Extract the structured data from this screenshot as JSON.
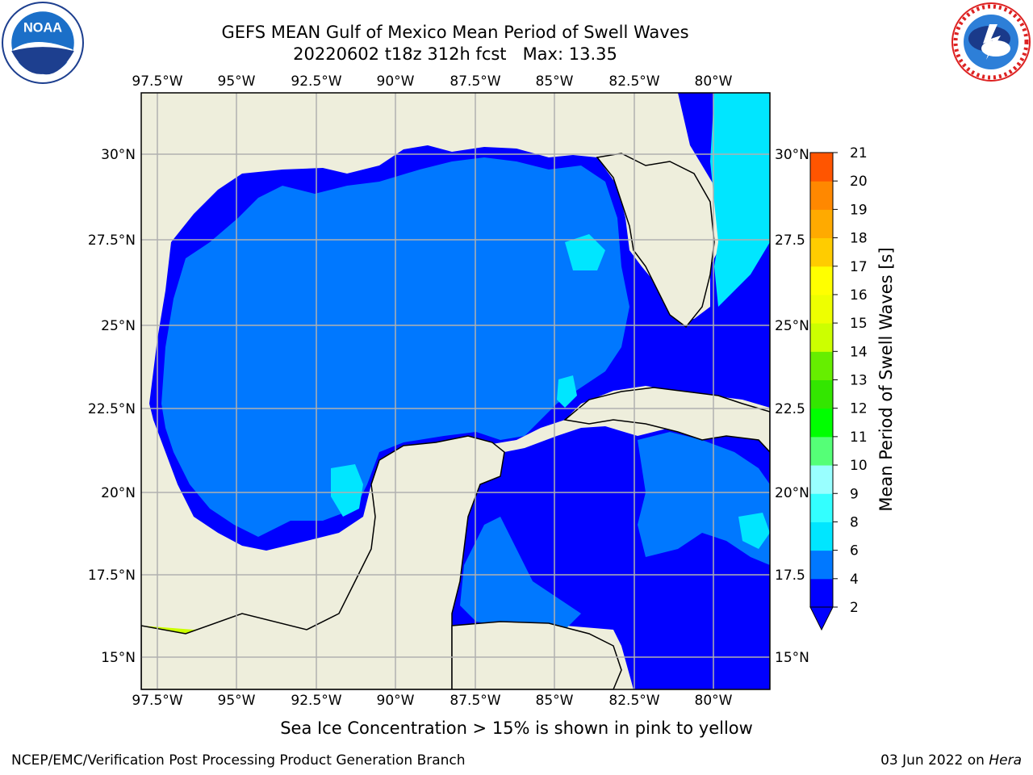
{
  "title": {
    "line1": "GEFS MEAN Gulf of Mexico Mean Period of Swell Waves",
    "line2": "20220602 t18z 312h fcst   Max: 13.35"
  },
  "map": {
    "lon_ticks": [
      "97.5°W",
      "95°W",
      "92.5°W",
      "90°W",
      "87.5°W",
      "85°W",
      "82.5°W",
      "80°W"
    ],
    "lat_ticks_left": [
      "30°N",
      "27.5°N",
      "25°N",
      "22.5°N",
      "20°N",
      "17.5°N",
      "15°N"
    ],
    "lat_ticks_right": [
      "30°N",
      "27.5",
      "25°N",
      "22.5",
      "20°N",
      "17.5",
      "15°N"
    ],
    "colors": {
      "land": "#eeeedc",
      "ocean_dark": "#0000ff",
      "ocean_mid": "#0078ff",
      "ocean_light": "#00e6ff",
      "grid": "#b0b0b0"
    }
  },
  "colorbar": {
    "label": "Mean Period of Swell Waves [s]",
    "ticks": [
      "2",
      "4",
      "6",
      "8",
      "9",
      "10",
      "11",
      "12",
      "13",
      "14",
      "15",
      "16",
      "17",
      "18",
      "19",
      "20",
      "21"
    ],
    "bands": [
      "#0000ff",
      "#0078ff",
      "#00e6ff",
      "#33ffff",
      "#99ffff",
      "#55ff77",
      "#00ff00",
      "#33e600",
      "#66ee00",
      "#ccff00",
      "#eeff00",
      "#ffff00",
      "#ffcc00",
      "#ffaa00",
      "#ff8800",
      "#ff5500",
      "#ff2200",
      "#ff0000"
    ]
  },
  "caption": "Sea Ice Concentration > 15% is shown in pink to yellow",
  "footer": {
    "left": "NCEP/EMC/Verification Post Processing Product Generation Branch",
    "right_date": "03 Jun 2022 on",
    "right_host": "Hera"
  },
  "logos": {
    "left": "noaa-logo",
    "right": "nws-logo",
    "left_text": "NOAA"
  }
}
